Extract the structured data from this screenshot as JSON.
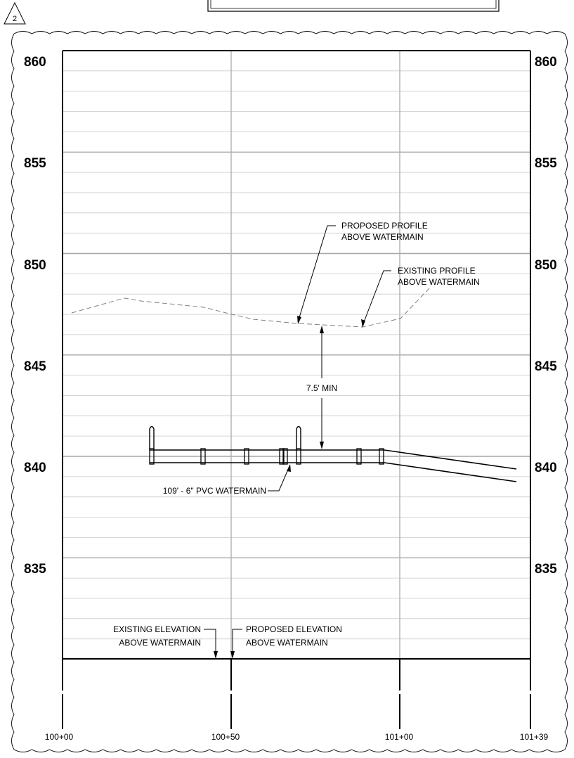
{
  "revision_tag": "2",
  "elevations_left": [
    "860",
    "855",
    "850",
    "845",
    "840",
    "835"
  ],
  "elevations_right": [
    "860",
    "855",
    "850",
    "845",
    "840",
    "835"
  ],
  "stations": [
    "100+00",
    "100+50",
    "101+00",
    "101+39"
  ],
  "annotations": {
    "proposed_profile": [
      "PROPOSED PROFILE",
      "ABOVE WATERMAIN"
    ],
    "existing_profile": [
      "EXISTING PROFILE",
      "ABOVE WATERMAIN"
    ],
    "min_cover": "7.5' MIN",
    "watermain": "109' - 6\" PVC WATERMAIN",
    "existing_elevation": [
      "EXISTING ELEVATION",
      "ABOVE WATERMAIN"
    ],
    "proposed_elevation": [
      "PROPOSED ELEVATION",
      "ABOVE WATERMAIN"
    ]
  }
}
